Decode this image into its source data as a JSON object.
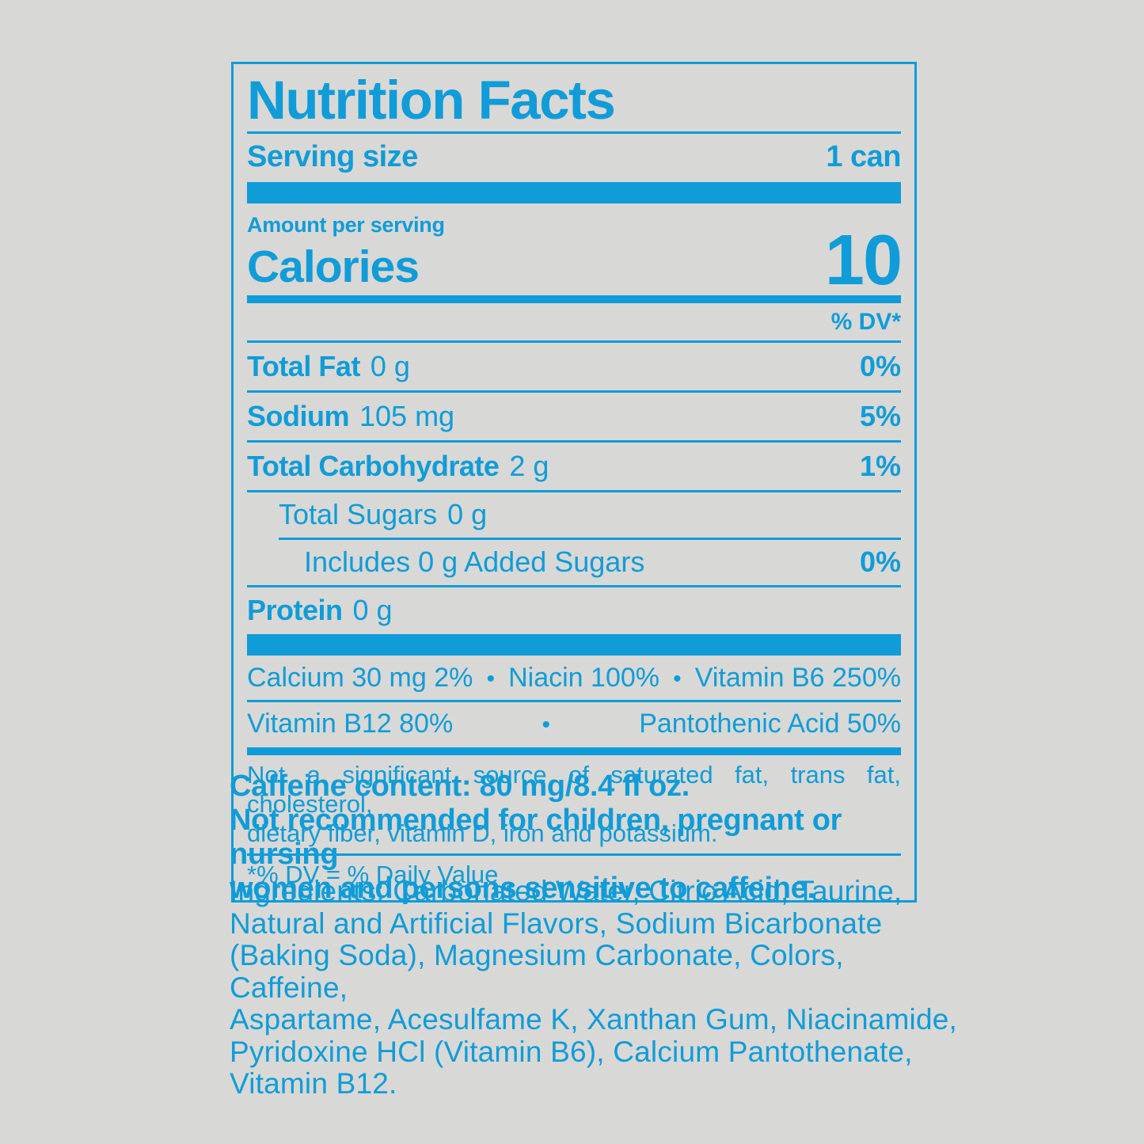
{
  "colors": {
    "blue": "#0f9cd8",
    "background": "#d8d8d6"
  },
  "panel": {
    "title": "Nutrition Facts",
    "serving_label": "Serving size",
    "serving_value": "1 can",
    "amount_label": "Amount per serving",
    "calories_label": "Calories",
    "calories_value": "10",
    "dv_header": "% DV*",
    "rows": [
      {
        "name": "Total Fat",
        "amount": "0 g",
        "dv": "0%"
      },
      {
        "name": "Sodium",
        "amount": "105 mg",
        "dv": "5%"
      },
      {
        "name": "Total Carbohydrate",
        "amount": "2 g",
        "dv": "1%"
      },
      {
        "name": "Total Sugars",
        "amount": "0 g",
        "dv": ""
      },
      {
        "name": "Includes 0 g Added Sugars",
        "amount": "",
        "dv": "0%"
      },
      {
        "name": "Protein",
        "amount": "0 g",
        "dv": ""
      }
    ],
    "bullet": "•",
    "micros_row1": {
      "a": "Calcium 30 mg 2%",
      "b": "Niacin 100%",
      "c": "Vitamin B6 250%"
    },
    "micros_row2": {
      "a": "Vitamin B12 80%",
      "b": "Pantothenic Acid 50%"
    },
    "footnote_line1": "Not a significant source of saturated fat, trans fat, cholesterol,",
    "footnote_line2": "dietary fiber, vitamin D, iron and potassium.",
    "dv_footnote": "*% DV = % Daily Value"
  },
  "caffeine": {
    "lines": [
      "Caffeine content: 80 mg/8.4 fl oz.",
      "Not recommended for children, pregnant or nursing",
      "women and persons sensitive to caffeine."
    ]
  },
  "ingredients": {
    "lines": [
      "Ingredients: Carbonated Water, Citric Acid, Taurine,",
      "Natural and Artificial Flavors, Sodium Bicarbonate",
      "(Baking Soda), Magnesium Carbonate, Colors, Caffeine,",
      "Aspartame, Acesulfame K, Xanthan Gum, Niacinamide,",
      "Pyridoxine HCl (Vitamin B6), Calcium Pantothenate,",
      "Vitamin B12."
    ]
  }
}
